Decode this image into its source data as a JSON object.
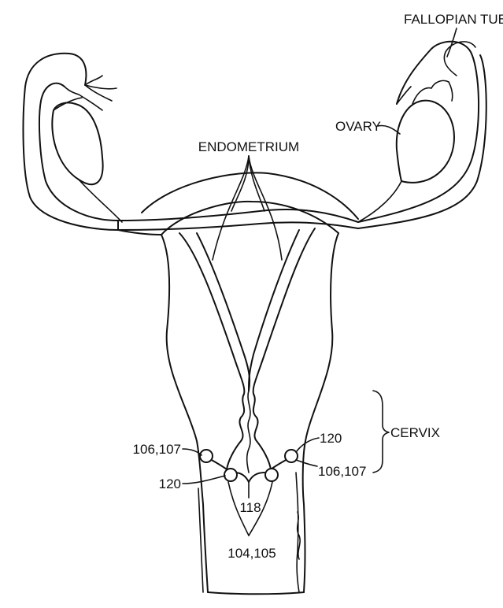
{
  "labels": {
    "fallopian_tube": "FALLOPIAN TUBE",
    "ovary": "OVARY",
    "endometrium": "ENDOMETRIUM",
    "cervix": "CERVIX",
    "ref_left_top": "106,107",
    "ref_left_bottom": "120",
    "ref_right_top": "120",
    "ref_right_bottom": "106,107",
    "ref_center": "118",
    "ref_bottom": "104,105"
  }
}
